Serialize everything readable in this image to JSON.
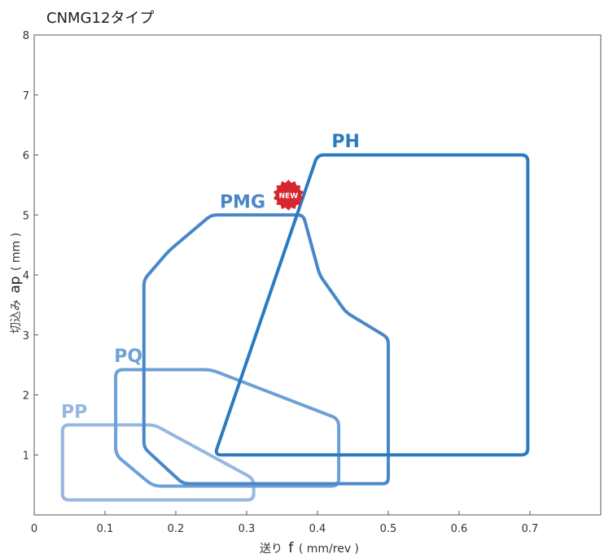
{
  "chart_data": {
    "type": "area",
    "title": "CNMG12タイプ",
    "xlabel": {
      "prefix": "送り",
      "symbol": "f",
      "unit": "( mm/rev )"
    },
    "ylabel": {
      "prefix": "切込み",
      "symbol": "ap",
      "unit": "( mm )"
    },
    "xlim": [
      0,
      0.8
    ],
    "ylim": [
      0,
      8
    ],
    "xticks": [
      "0",
      "0.1",
      "0.2",
      "0.3",
      "0.4",
      "0.5",
      "0.6",
      "0.7"
    ],
    "yticks": [
      "1",
      "2",
      "3",
      "4",
      "5",
      "6",
      "7",
      "8"
    ],
    "grid": false,
    "series": [
      {
        "name": "PP",
        "color": "#96b8e0",
        "points": [
          [
            0.04,
            0.25
          ],
          [
            0.31,
            0.25
          ],
          [
            0.31,
            0.6
          ],
          [
            0.17,
            1.5
          ],
          [
            0.04,
            1.5
          ]
        ]
      },
      {
        "name": "PQ",
        "color": "#6da0d6",
        "points": [
          [
            0.115,
            2.42
          ],
          [
            0.25,
            2.42
          ],
          [
            0.43,
            1.6
          ],
          [
            0.43,
            0.48
          ],
          [
            0.168,
            0.48
          ],
          [
            0.115,
            1.0
          ]
        ]
      },
      {
        "name": "PMG",
        "color": "#4a86c8",
        "badge": "NEW",
        "points": [
          [
            0.155,
            3.92
          ],
          [
            0.19,
            4.4
          ],
          [
            0.25,
            5.0
          ],
          [
            0.38,
            5.0
          ],
          [
            0.403,
            4.0
          ],
          [
            0.44,
            3.38
          ],
          [
            0.5,
            2.95
          ],
          [
            0.5,
            0.52
          ],
          [
            0.21,
            0.52
          ],
          [
            0.155,
            1.12
          ]
        ]
      },
      {
        "name": "PH",
        "color": "#2a7bbf",
        "points": [
          [
            0.255,
            1.0
          ],
          [
            0.4,
            6.0
          ],
          [
            0.697,
            6.0
          ],
          [
            0.697,
            1.0
          ]
        ]
      }
    ]
  }
}
